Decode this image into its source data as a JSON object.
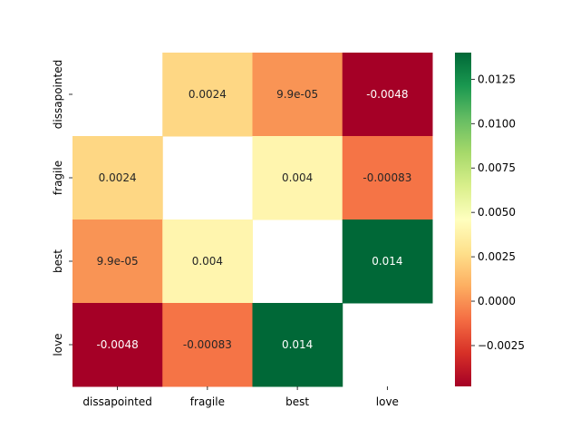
{
  "chart_data": {
    "type": "heatmap",
    "title": "",
    "xlabel": "",
    "ylabel": "",
    "x_categories": [
      "dissapointed",
      "fragile",
      "best",
      "love"
    ],
    "y_categories": [
      "dissapointed",
      "fragile",
      "best",
      "love"
    ],
    "values": [
      [
        null,
        0.0024,
        9.9e-05,
        -0.0048
      ],
      [
        0.0024,
        null,
        0.004,
        -0.00083
      ],
      [
        9.9e-05,
        0.004,
        null,
        0.014
      ],
      [
        -0.0048,
        -0.00083,
        0.014,
        null
      ]
    ],
    "annotations": [
      [
        null,
        "0.0024",
        "9.9e-05",
        "-0.0048"
      ],
      [
        "0.0024",
        null,
        "0.004",
        "-0.00083"
      ],
      [
        "9.9e-05",
        "0.004",
        null,
        "0.014"
      ],
      [
        "-0.0048",
        "-0.00083",
        "0.014",
        null
      ]
    ],
    "colormap": "RdYlGn",
    "color_range": [
      -0.0048,
      0.014
    ],
    "colorbar": {
      "ticks": [
        -0.0025,
        0.0,
        0.0025,
        0.005,
        0.0075,
        0.01,
        0.0125
      ],
      "tick_labels": [
        "−0.0025",
        "0.0000",
        "0.0025",
        "0.0050",
        "0.0075",
        "0.0100",
        "0.0125"
      ]
    }
  }
}
